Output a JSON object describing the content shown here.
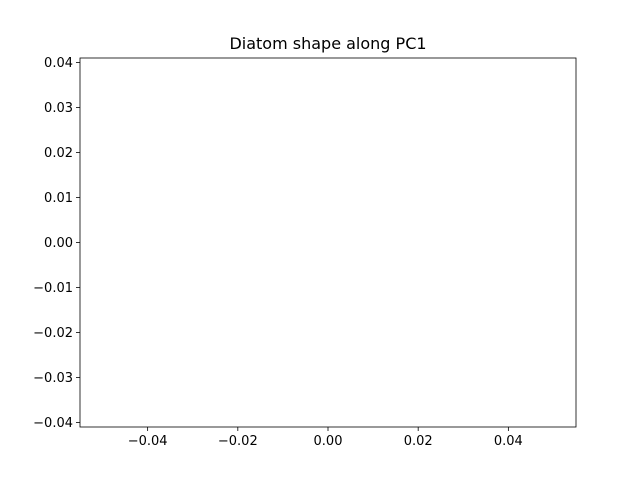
{
  "chart_data": {
    "type": "line",
    "title": "Diatom shape along PC1",
    "xlabel": "",
    "ylabel": "",
    "xlim": [
      -0.055,
      0.055
    ],
    "ylim": [
      -0.041,
      0.041
    ],
    "x_ticks": [
      -0.04,
      -0.02,
      0.0,
      0.02,
      0.04
    ],
    "x_tick_labels": [
      "−0.04",
      "−0.02",
      "0.00",
      "0.02",
      "0.04"
    ],
    "y_ticks": [
      0.04,
      0.03,
      0.02,
      0.01,
      0.0,
      -0.01,
      -0.02,
      -0.03,
      -0.04
    ],
    "y_tick_labels": [
      "0.04",
      "0.03",
      "0.02",
      "0.01",
      "0.00",
      "−0.01",
      "−0.02",
      "−0.03",
      "−0.04"
    ],
    "series": [],
    "grid": false,
    "legend": "none",
    "colors": {
      "axes": "#000000",
      "background": "#ffffff"
    }
  }
}
